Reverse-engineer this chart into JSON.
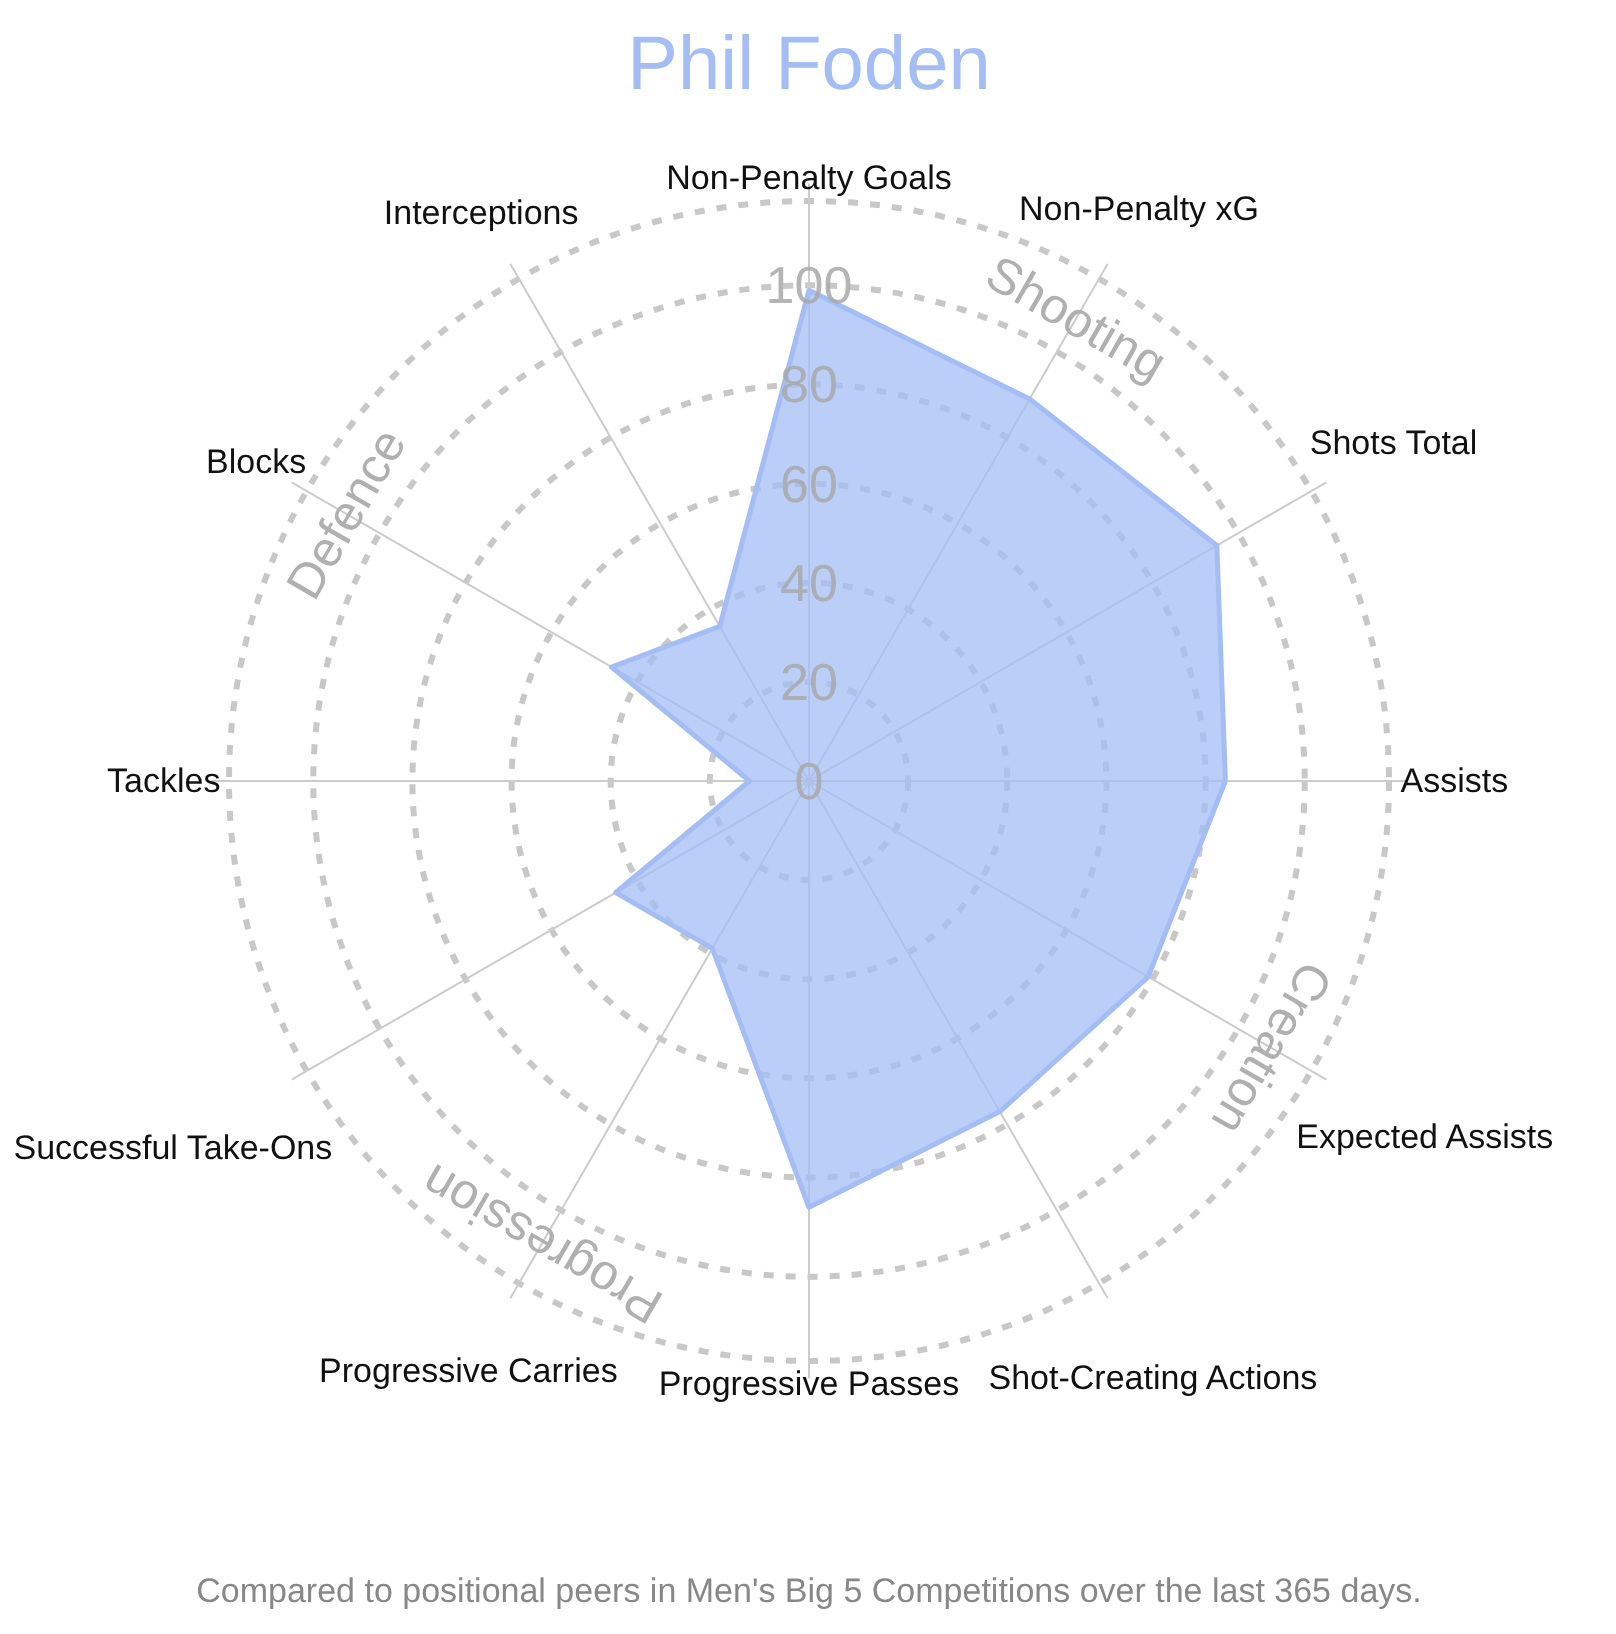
{
  "chart_data": {
    "type": "radar",
    "title": "Phil Foden",
    "categories": [
      "Non-Penalty Goals",
      "Non-Penalty xG",
      "Shots Total",
      "Assists",
      "Expected Assists",
      "Shot-Creating Actions",
      "Progressive Passes",
      "Progressive Carries",
      "Successful Take-Ons",
      "Tackles",
      "Blocks",
      "Interceptions"
    ],
    "series": [
      {
        "color": "#a4bdf5",
        "values": [
          99,
          89,
          95,
          84,
          79,
          77,
          86,
          39,
          45,
          12,
          46,
          36
        ]
      }
    ],
    "ylim": [
      0,
      117
    ],
    "yticks": [
      0,
      20,
      40,
      60,
      80,
      100
    ],
    "grid": true,
    "annotations": [
      "Shooting",
      "Creation",
      "Progression",
      "Defence",
      "Compared to positional peers in Men's Big 5 Competitions over the last 365 days."
    ]
  }
}
